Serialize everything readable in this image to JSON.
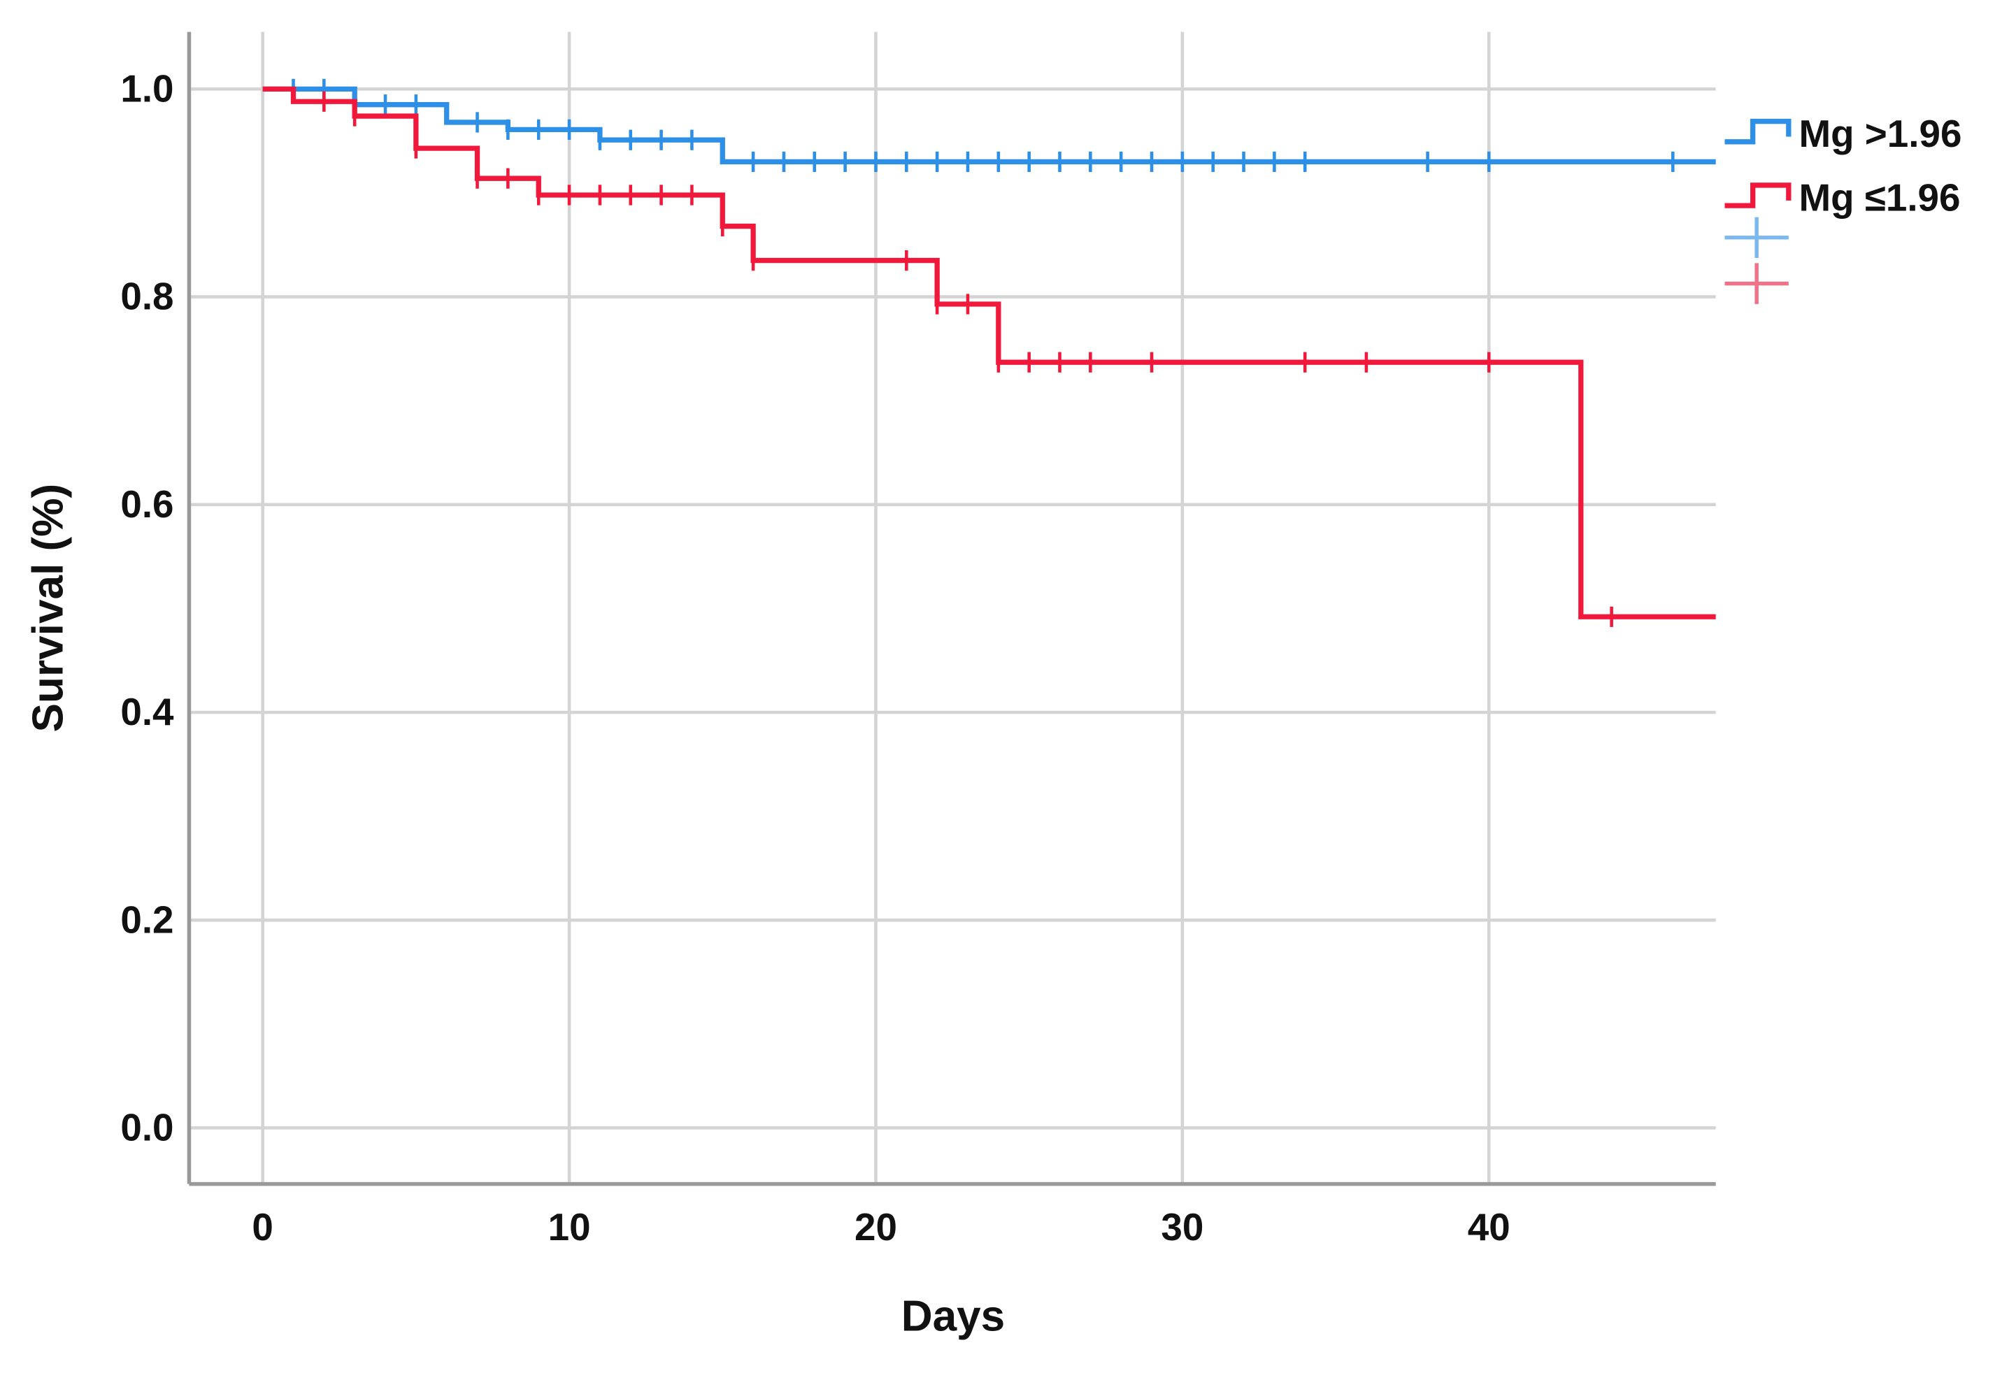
{
  "chart_data": {
    "type": "step",
    "xlabel": "Days",
    "ylabel": "Survival (%)",
    "xlim": [
      -2.4,
      47.4
    ],
    "ylim": [
      -0.054,
      1.055
    ],
    "xticks": [
      0,
      10,
      20,
      30,
      40
    ],
    "yticks": [
      {
        "value": 0,
        "label": "0.0"
      },
      {
        "value": 0.2,
        "label": "0.2"
      },
      {
        "value": 0.4,
        "label": "0.4"
      },
      {
        "value": 0.6,
        "label": "0.6"
      },
      {
        "value": 0.8,
        "label": "0.8"
      },
      {
        "value": 1,
        "label": "1.0"
      }
    ],
    "grid": true,
    "legend": "upper right",
    "series": [
      {
        "name": "Mg >1.96",
        "color": "#2e8fe6",
        "x": [
          0,
          3,
          6,
          8,
          11,
          15,
          47.4
        ],
        "values": [
          1,
          0.985,
          0.968,
          0.961,
          0.951,
          0.93,
          0.93
        ],
        "censor_x": [
          1,
          2,
          4,
          5,
          7,
          8,
          9,
          10,
          11,
          12,
          13,
          14,
          16,
          17,
          18,
          19,
          20,
          21,
          22,
          23,
          24,
          25,
          26,
          27,
          28,
          29,
          30,
          31,
          32,
          33,
          34,
          38,
          40,
          46
        ],
        "censor_values": [
          1,
          1,
          0.985,
          0.985,
          0.968,
          0.961,
          0.961,
          0.961,
          0.951,
          0.951,
          0.951,
          0.951,
          0.93,
          0.93,
          0.93,
          0.93,
          0.93,
          0.93,
          0.93,
          0.93,
          0.93,
          0.93,
          0.93,
          0.93,
          0.93,
          0.93,
          0.93,
          0.93,
          0.93,
          0.93,
          0.93,
          0.93,
          0.93,
          0.93
        ]
      },
      {
        "name": "Mg ≤1.96",
        "color": "#f0193c",
        "x": [
          0,
          1,
          3,
          5,
          7,
          9,
          15,
          16,
          22,
          24,
          43,
          47.4
        ],
        "values": [
          1,
          0.988,
          0.974,
          0.943,
          0.914,
          0.898,
          0.868,
          0.835,
          0.793,
          0.737,
          0.492,
          0.492
        ],
        "censor_x": [
          2,
          3,
          5,
          7,
          8,
          9,
          10,
          11,
          12,
          13,
          14,
          15,
          16,
          21,
          22,
          23,
          24,
          25,
          26,
          27,
          29,
          34,
          36,
          40,
          44
        ],
        "censor_values": [
          0.988,
          0.974,
          0.943,
          0.914,
          0.914,
          0.898,
          0.898,
          0.898,
          0.898,
          0.898,
          0.898,
          0.868,
          0.835,
          0.835,
          0.793,
          0.793,
          0.737,
          0.737,
          0.737,
          0.737,
          0.737,
          0.737,
          0.737,
          0.737,
          0.492
        ]
      }
    ]
  }
}
